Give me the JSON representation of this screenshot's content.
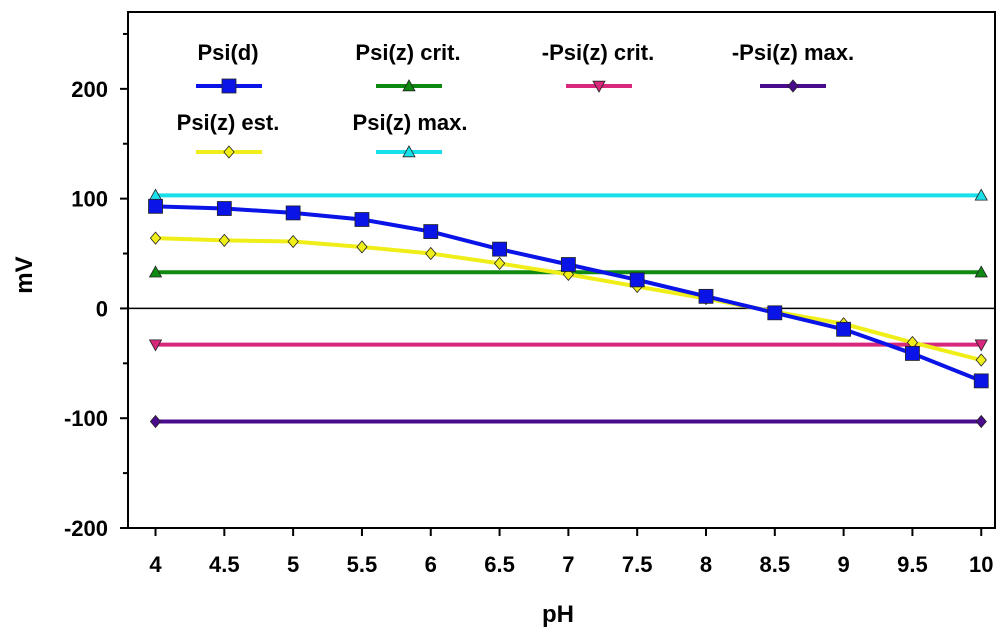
{
  "chart_data": {
    "type": "line",
    "xlabel": "pH",
    "ylabel": "mV",
    "xlim": [
      3.8,
      10.1
    ],
    "ylim": [
      -200,
      270
    ],
    "x_ticks": [
      4,
      4.5,
      5,
      5.5,
      6,
      6.5,
      7,
      7.5,
      8,
      8.5,
      9,
      9.5,
      10
    ],
    "x_tick_labels": [
      "4",
      "4.5",
      "5",
      "5.5",
      "6",
      "6.5",
      "7",
      "7.5",
      "8",
      "8.5",
      "9",
      "9.5",
      "10"
    ],
    "y_ticks": [
      -200,
      -100,
      0,
      100,
      200
    ],
    "y_tick_labels": [
      "-200",
      "-100",
      "0",
      "100",
      "200"
    ],
    "zero_line": true,
    "series": [
      {
        "name": "Psi(d)",
        "color": "#0a14e6",
        "marker": "square",
        "stroke_width": 4,
        "marker_size": 14,
        "x": [
          4,
          4.5,
          5,
          5.5,
          6,
          6.5,
          7,
          7.5,
          8,
          8.5,
          9,
          9.5,
          10
        ],
        "values": [
          93,
          91,
          87,
          81,
          70,
          54,
          40,
          26,
          11,
          -4,
          -19,
          -41,
          -66
        ]
      },
      {
        "name": "Psi(z) crit.",
        "color": "#0e8a12",
        "marker": "triangle-up",
        "stroke_width": 4,
        "marker_size": 12,
        "x": [
          4,
          10
        ],
        "values": [
          33,
          33
        ]
      },
      {
        "name": "-Psi(z) crit.",
        "color": "#d8287c",
        "marker": "triangle-down",
        "stroke_width": 4,
        "marker_size": 12,
        "x": [
          4,
          10
        ],
        "values": [
          -33,
          -33
        ]
      },
      {
        "name": "-Psi(z) max.",
        "color": "#4a0c8c",
        "marker": "diamond",
        "stroke_width": 4,
        "marker_size": 12,
        "x": [
          4,
          10
        ],
        "values": [
          -103,
          -103
        ]
      },
      {
        "name": "Psi(z) est.",
        "color": "#f0ee18",
        "marker": "diamond",
        "stroke_width": 4,
        "marker_size": 12,
        "x": [
          4,
          4.5,
          5,
          5.5,
          6,
          6.5,
          7,
          7.5,
          8,
          8.5,
          9,
          9.5,
          10
        ],
        "values": [
          64,
          62,
          61,
          56,
          50,
          41,
          31,
          20,
          9,
          -3,
          -14,
          -31,
          -47
        ]
      },
      {
        "name": "Psi(z) max.",
        "color": "#18e0ea",
        "marker": "triangle-up",
        "stroke_width": 4,
        "marker_size": 12,
        "x": [
          4,
          10
        ],
        "values": [
          103,
          103
        ]
      }
    ]
  }
}
